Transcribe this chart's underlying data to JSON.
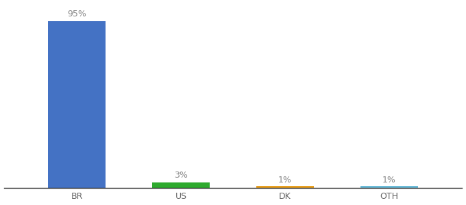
{
  "categories": [
    "BR",
    "US",
    "DK",
    "OTH"
  ],
  "values": [
    95,
    3,
    1,
    1
  ],
  "bar_colors": [
    "#4472C4",
    "#2EAA2E",
    "#E8A020",
    "#6BBBD8"
  ],
  "label_texts": [
    "95%",
    "3%",
    "1%",
    "1%"
  ],
  "background_color": "#ffffff",
  "ylim": [
    0,
    105
  ],
  "bar_width": 0.55,
  "label_color": "#888888",
  "tick_color": "#666666",
  "label_fontsize": 9,
  "tick_fontsize": 9
}
